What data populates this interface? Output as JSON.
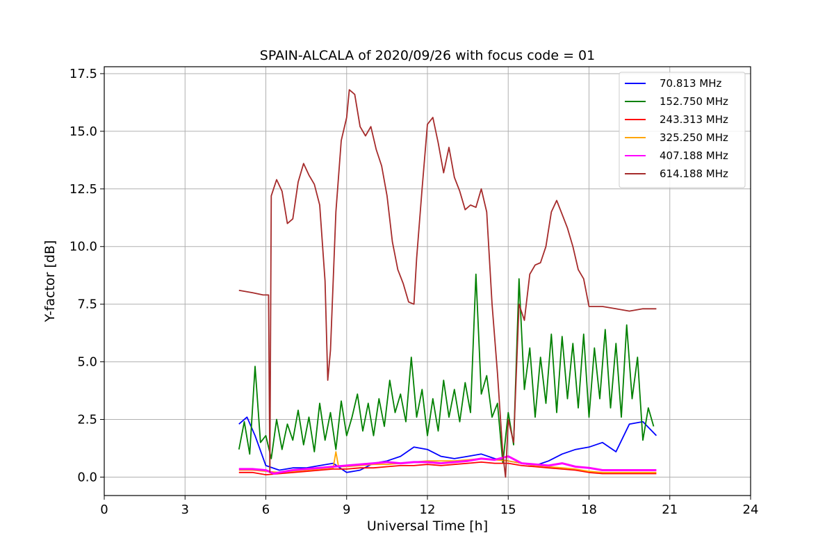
{
  "chart_data": {
    "type": "line",
    "title": "SPAIN-ALCALA of 2020/09/26 with focus code = 01",
    "xlabel": "Universal Time [h]",
    "ylabel": "Y-factor [dB]",
    "xlim": [
      0,
      24
    ],
    "ylim": [
      -0.8,
      17.8
    ],
    "xticks": [
      0,
      3,
      6,
      9,
      12,
      15,
      18,
      21,
      24
    ],
    "yticks": [
      0.0,
      2.5,
      5.0,
      7.5,
      10.0,
      12.5,
      15.0,
      17.5
    ],
    "ytick_labels": [
      "0.0",
      "2.5",
      "5.0",
      "7.5",
      "10.0",
      "12.5",
      "15.0",
      "17.5"
    ],
    "grid": true,
    "legend_position": "top-right",
    "series": [
      {
        "name": " 70.813 MHz",
        "color": "#0000ff",
        "x": [
          5.0,
          5.3,
          5.6,
          6.0,
          6.5,
          7.0,
          7.5,
          8.0,
          8.5,
          9.0,
          9.5,
          10.0,
          10.5,
          11.0,
          11.5,
          12.0,
          12.5,
          13.0,
          13.5,
          14.0,
          14.5,
          15.0,
          15.5,
          16.0,
          16.5,
          17.0,
          17.5,
          18.0,
          18.5,
          19.0,
          19.5,
          20.0,
          20.5
        ],
        "values": [
          2.3,
          2.6,
          1.8,
          0.5,
          0.3,
          0.4,
          0.4,
          0.5,
          0.6,
          0.2,
          0.3,
          0.6,
          0.7,
          0.9,
          1.3,
          1.2,
          0.9,
          0.8,
          0.9,
          1.0,
          0.8,
          0.7,
          0.6,
          0.5,
          0.7,
          1.0,
          1.2,
          1.3,
          1.5,
          1.1,
          2.3,
          2.4,
          1.8
        ]
      },
      {
        "name": "152.750 MHz",
        "color": "#008000",
        "x": [
          5.0,
          5.2,
          5.4,
          5.6,
          5.8,
          6.0,
          6.2,
          6.4,
          6.6,
          6.8,
          7.0,
          7.2,
          7.4,
          7.6,
          7.8,
          8.0,
          8.2,
          8.4,
          8.6,
          8.8,
          9.0,
          9.2,
          9.4,
          9.6,
          9.8,
          10.0,
          10.2,
          10.4,
          10.6,
          10.8,
          11.0,
          11.2,
          11.4,
          11.6,
          11.8,
          12.0,
          12.2,
          12.4,
          12.6,
          12.8,
          13.0,
          13.2,
          13.4,
          13.6,
          13.8,
          14.0,
          14.2,
          14.4,
          14.6,
          14.8,
          15.0,
          15.2,
          15.4,
          15.6,
          15.8,
          16.0,
          16.2,
          16.4,
          16.6,
          16.8,
          17.0,
          17.2,
          17.4,
          17.6,
          17.8,
          18.0,
          18.2,
          18.4,
          18.6,
          18.8,
          19.0,
          19.2,
          19.4,
          19.6,
          19.8,
          20.0,
          20.2,
          20.4
        ],
        "values": [
          1.2,
          2.4,
          1.0,
          4.8,
          1.5,
          1.8,
          0.8,
          2.5,
          1.2,
          2.3,
          1.6,
          2.9,
          1.4,
          2.6,
          1.1,
          3.2,
          1.6,
          2.8,
          1.2,
          3.3,
          1.8,
          2.6,
          3.6,
          2.0,
          3.2,
          1.8,
          3.4,
          2.2,
          4.2,
          2.8,
          3.6,
          2.4,
          5.2,
          2.6,
          3.8,
          1.8,
          3.4,
          2.0,
          4.2,
          2.6,
          3.8,
          2.4,
          4.1,
          2.8,
          8.8,
          3.6,
          4.4,
          2.6,
          3.2,
          0.6,
          2.8,
          1.4,
          8.6,
          3.8,
          5.6,
          2.6,
          5.2,
          3.2,
          6.2,
          2.8,
          6.1,
          3.4,
          5.8,
          3.0,
          6.2,
          2.6,
          5.6,
          3.4,
          6.4,
          3.0,
          5.8,
          2.6,
          6.6,
          3.4,
          5.2,
          1.6,
          3.0,
          2.2
        ]
      },
      {
        "name": "243.313 MHz",
        "color": "#ff0000",
        "x": [
          5.0,
          5.5,
          6.0,
          6.5,
          7.0,
          7.5,
          8.0,
          8.5,
          9.0,
          9.5,
          10.0,
          10.5,
          11.0,
          11.5,
          12.0,
          12.5,
          13.0,
          13.5,
          14.0,
          14.5,
          15.0,
          15.5,
          16.0,
          16.5,
          17.0,
          17.5,
          18.0,
          18.5,
          19.0,
          19.5,
          20.0,
          20.5
        ],
        "values": [
          0.2,
          0.2,
          0.1,
          0.15,
          0.2,
          0.25,
          0.3,
          0.35,
          0.35,
          0.4,
          0.4,
          0.45,
          0.5,
          0.5,
          0.55,
          0.5,
          0.55,
          0.6,
          0.65,
          0.6,
          0.6,
          0.5,
          0.45,
          0.4,
          0.35,
          0.3,
          0.2,
          0.15,
          0.15,
          0.15,
          0.15,
          0.15
        ]
      },
      {
        "name": "325.250 MHz",
        "color": "#ffa500",
        "x": [
          5.0,
          5.5,
          6.0,
          6.5,
          7.0,
          7.5,
          8.0,
          8.5,
          8.6,
          8.7,
          9.0,
          9.5,
          10.0,
          10.5,
          11.0,
          11.5,
          12.0,
          12.5,
          13.0,
          13.5,
          14.0,
          14.5,
          15.0,
          15.5,
          16.0,
          16.5,
          17.0,
          17.5,
          18.0,
          18.5,
          19.0,
          19.5,
          20.0,
          20.5
        ],
        "values": [
          0.3,
          0.3,
          0.25,
          0.2,
          0.25,
          0.3,
          0.35,
          0.4,
          1.1,
          0.45,
          0.45,
          0.5,
          0.55,
          0.55,
          0.6,
          0.65,
          0.7,
          0.7,
          0.7,
          0.75,
          0.8,
          0.75,
          0.7,
          0.6,
          0.5,
          0.45,
          0.4,
          0.35,
          0.25,
          0.2,
          0.2,
          0.2,
          0.2,
          0.2
        ]
      },
      {
        "name": "407.188 MHz",
        "color": "#ff00ff",
        "x": [
          5.0,
          5.5,
          6.0,
          6.3,
          6.5,
          7.0,
          7.5,
          8.0,
          8.5,
          9.0,
          9.5,
          10.0,
          10.5,
          11.0,
          11.5,
          12.0,
          12.5,
          13.0,
          13.5,
          14.0,
          14.5,
          15.0,
          15.5,
          16.0,
          16.5,
          17.0,
          17.5,
          18.0,
          18.5,
          19.0,
          19.5,
          20.0,
          20.5
        ],
        "values": [
          0.35,
          0.35,
          0.3,
          0.15,
          0.2,
          0.3,
          0.35,
          0.4,
          0.45,
          0.5,
          0.55,
          0.6,
          0.65,
          0.6,
          0.65,
          0.65,
          0.6,
          0.65,
          0.7,
          0.8,
          0.75,
          0.9,
          0.6,
          0.55,
          0.5,
          0.6,
          0.45,
          0.4,
          0.3,
          0.3,
          0.3,
          0.3,
          0.3
        ]
      },
      {
        "name": "614.188 MHz",
        "color": "#a52a2a",
        "x": [
          5.0,
          5.5,
          5.9,
          6.1,
          6.15,
          6.2,
          6.4,
          6.6,
          6.8,
          7.0,
          7.2,
          7.4,
          7.6,
          7.8,
          8.0,
          8.2,
          8.3,
          8.4,
          8.6,
          8.8,
          9.0,
          9.1,
          9.3,
          9.5,
          9.7,
          9.9,
          10.1,
          10.3,
          10.5,
          10.7,
          10.9,
          11.1,
          11.3,
          11.5,
          11.6,
          11.8,
          12.0,
          12.2,
          12.4,
          12.6,
          12.8,
          13.0,
          13.2,
          13.4,
          13.6,
          13.8,
          14.0,
          14.2,
          14.4,
          14.6,
          14.8,
          14.9,
          15.0,
          15.2,
          15.4,
          15.6,
          15.8,
          16.0,
          16.2,
          16.4,
          16.6,
          16.8,
          17.0,
          17.2,
          17.4,
          17.6,
          17.8,
          18.0,
          18.5,
          19.0,
          19.5,
          20.0,
          20.5
        ],
        "values": [
          8.1,
          8.0,
          7.9,
          7.9,
          0.2,
          12.2,
          12.9,
          12.4,
          11.0,
          11.2,
          12.8,
          13.6,
          13.1,
          12.7,
          11.8,
          8.5,
          4.2,
          5.5,
          11.5,
          14.6,
          15.6,
          16.8,
          16.6,
          15.2,
          14.8,
          15.2,
          14.2,
          13.5,
          12.2,
          10.2,
          9.0,
          8.4,
          7.6,
          7.5,
          9.5,
          12.5,
          15.3,
          15.6,
          14.5,
          13.2,
          14.3,
          13.0,
          12.4,
          11.6,
          11.8,
          11.7,
          12.5,
          11.5,
          7.5,
          4.5,
          1.0,
          0.0,
          2.5,
          1.5,
          7.5,
          6.8,
          8.8,
          9.2,
          9.3,
          10.0,
          11.5,
          12.0,
          11.4,
          10.8,
          10.0,
          9.0,
          8.6,
          7.4,
          7.4,
          7.3,
          7.2,
          7.3,
          7.3
        ]
      }
    ]
  }
}
